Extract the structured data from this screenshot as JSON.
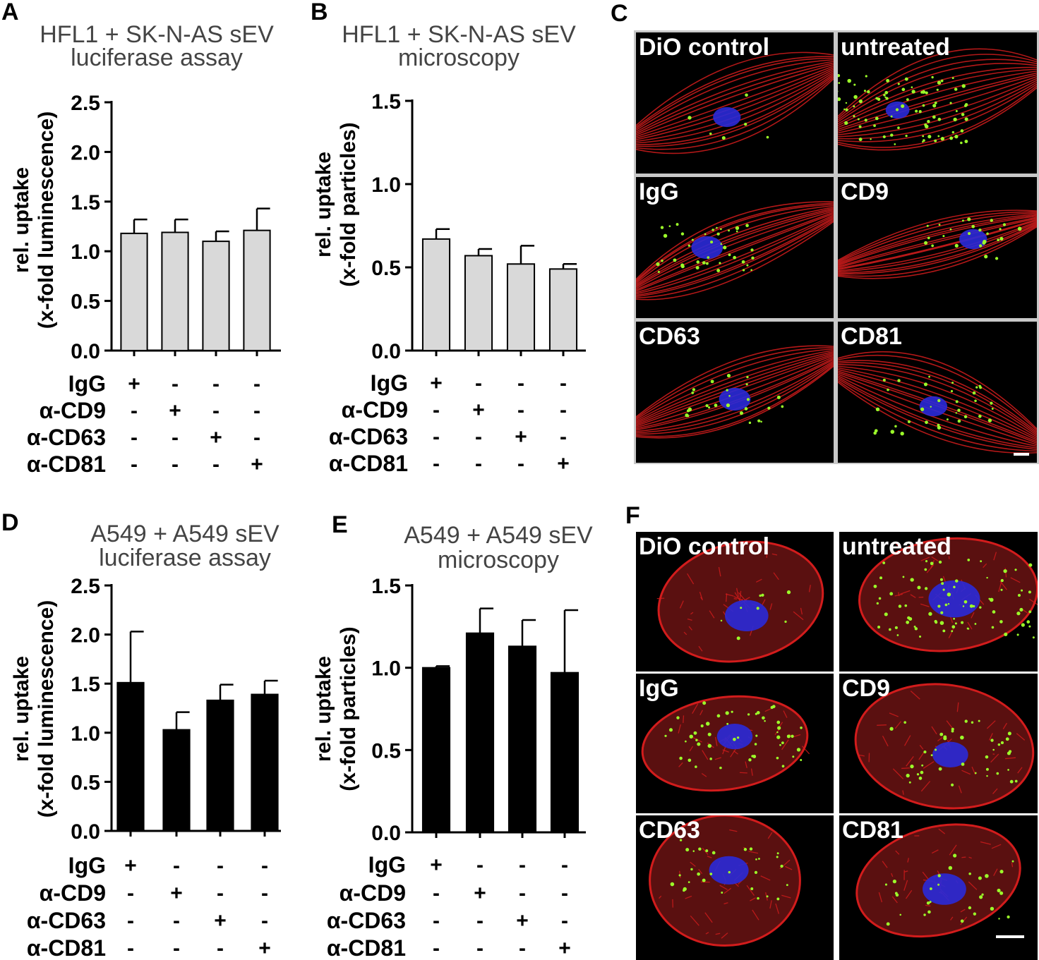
{
  "panel_letters": {
    "a": "A",
    "b": "B",
    "c": "C",
    "d": "D",
    "e": "E",
    "f": "F"
  },
  "chart_data": [
    {
      "id": "A",
      "type": "bar",
      "title": "HFL1 + SK-N-AS sEV",
      "subtitle": "luciferase assay",
      "ylabel": [
        "rel. uptake",
        "(x-fold luminescence)"
      ],
      "ylim": [
        0,
        2.5
      ],
      "yticks": [
        "0.0",
        "0.5",
        "1.0",
        "1.5",
        "2.0",
        "2.5"
      ],
      "categories": [
        "IgG",
        "α-CD9",
        "α-CD63",
        "α-CD81"
      ],
      "values": [
        1.18,
        1.19,
        1.1,
        1.21
      ],
      "errors": [
        0.14,
        0.13,
        0.1,
        0.22
      ],
      "bar_color": "#d9d9d9",
      "treatment_rows": [
        {
          "label": "IgG",
          "signs": [
            "+",
            "-",
            "-",
            "-"
          ]
        },
        {
          "label": "α-CD9",
          "signs": [
            "-",
            "+",
            "-",
            "-"
          ]
        },
        {
          "label": "α-CD63",
          "signs": [
            "-",
            "-",
            "+",
            "-"
          ]
        },
        {
          "label": "α-CD81",
          "signs": [
            "-",
            "-",
            "-",
            "+"
          ]
        }
      ]
    },
    {
      "id": "B",
      "type": "bar",
      "title": "HFL1 + SK-N-AS sEV",
      "subtitle": "microscopy",
      "ylabel": [
        "rel. uptake",
        "(x-fold particles)"
      ],
      "ylim": [
        0,
        1.5
      ],
      "yticks": [
        "0.0",
        "0.5",
        "1.0",
        "1.5"
      ],
      "categories": [
        "IgG",
        "α-CD9",
        "α-CD63",
        "α-CD81"
      ],
      "values": [
        0.67,
        0.57,
        0.52,
        0.49
      ],
      "errors": [
        0.06,
        0.04,
        0.11,
        0.03
      ],
      "bar_color": "#d9d9d9",
      "treatment_rows": [
        {
          "label": "IgG",
          "signs": [
            "+",
            "-",
            "-",
            "-"
          ]
        },
        {
          "label": "α-CD9",
          "signs": [
            "-",
            "+",
            "-",
            "-"
          ]
        },
        {
          "label": "α-CD63",
          "signs": [
            "-",
            "-",
            "+",
            "-"
          ]
        },
        {
          "label": "α-CD81",
          "signs": [
            "-",
            "-",
            "-",
            "+"
          ]
        }
      ]
    },
    {
      "id": "D",
      "type": "bar",
      "title": "A549 + A549 sEV",
      "subtitle": "luciferase assay",
      "ylabel": [
        "rel. uptake",
        "(x-fold luminescence)"
      ],
      "ylim": [
        0,
        2.5
      ],
      "yticks": [
        "0.0",
        "0.5",
        "1.0",
        "1.5",
        "2.0",
        "2.5"
      ],
      "categories": [
        "IgG",
        "α-CD9",
        "α-CD63",
        "α-CD81"
      ],
      "values": [
        1.51,
        1.03,
        1.33,
        1.39
      ],
      "errors": [
        0.52,
        0.18,
        0.16,
        0.14
      ],
      "bar_color": "#000000",
      "treatment_rows": [
        {
          "label": "IgG",
          "signs": [
            "+",
            "-",
            "-",
            "-"
          ]
        },
        {
          "label": "α-CD9",
          "signs": [
            "-",
            "+",
            "-",
            "-"
          ]
        },
        {
          "label": "α-CD63",
          "signs": [
            "-",
            "-",
            "+",
            "-"
          ]
        },
        {
          "label": "α-CD81",
          "signs": [
            "-",
            "-",
            "-",
            "+"
          ]
        }
      ]
    },
    {
      "id": "E",
      "type": "bar",
      "title": "A549 + A549 sEV",
      "subtitle": "microscopy",
      "ylabel": [
        "rel. uptake",
        "(x-fold particles)"
      ],
      "ylim": [
        0,
        1.5
      ],
      "yticks": [
        "0.0",
        "0.5",
        "1.0",
        "1.5"
      ],
      "categories": [
        "IgG",
        "α-CD9",
        "α-CD63",
        "α-CD81"
      ],
      "values": [
        1.0,
        1.21,
        1.13,
        0.97
      ],
      "errors": [
        0.01,
        0.15,
        0.16,
        0.38
      ],
      "bar_color": "#000000",
      "treatment_rows": [
        {
          "label": "IgG",
          "signs": [
            "+",
            "-",
            "-",
            "-"
          ]
        },
        {
          "label": "α-CD9",
          "signs": [
            "-",
            "+",
            "-",
            "-"
          ]
        },
        {
          "label": "α-CD63",
          "signs": [
            "-",
            "-",
            "+",
            "-"
          ]
        },
        {
          "label": "α-CD81",
          "signs": [
            "-",
            "-",
            "-",
            "+"
          ]
        }
      ]
    }
  ],
  "micrographs_c": {
    "labels": [
      "DiO control",
      "untreated",
      "IgG",
      "CD9",
      "CD63",
      "CD81"
    ]
  },
  "micrographs_f": {
    "labels": [
      "DiO control",
      "untreated",
      "IgG",
      "CD9",
      "CD63",
      "CD81"
    ]
  },
  "colors": {
    "actin": "#d21c1c",
    "nucleus": "#2a2ad8",
    "vesicles": "#9cff2a",
    "background": "#000000"
  }
}
